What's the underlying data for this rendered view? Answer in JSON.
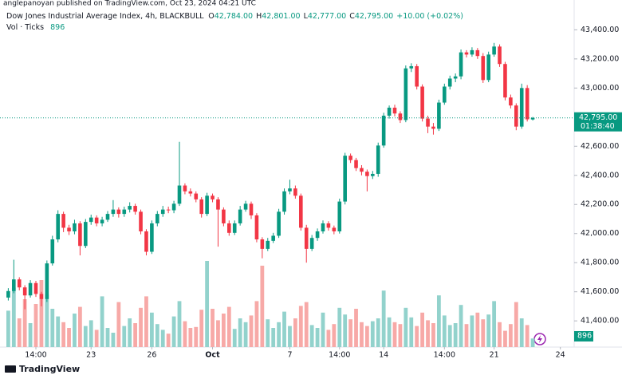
{
  "chart_data": {
    "type": "candlestick",
    "attribution": "anglepanoyan published on TradingView.com, Oct 23, 2024 04:21 UTC",
    "title": "Dow Jones Industrial Average Index, 4h, BLACKBULL",
    "ohlc_prefixes": [
      "O",
      "H",
      "L",
      "C"
    ],
    "last_labels": [
      "42,784.00",
      "42,801.00",
      "42,777.00",
      "42,795.00"
    ],
    "change_label": "+10.00 (+0.02%)",
    "volume_title": "Vol · Ticks",
    "countdown": "01:38:40",
    "brand": "TradingView",
    "up_color": "#089981",
    "down_color": "#f23645",
    "volume_up_color": "#92d2cc",
    "volume_down_color": "#f7a9a7",
    "ohlc": [
      [
        41560,
        41625,
        41540,
        41605
      ],
      [
        41605,
        41820,
        41590,
        41685
      ],
      [
        41685,
        41700,
        41610,
        41630
      ],
      [
        41630,
        41645,
        41480,
        41575
      ],
      [
        41575,
        41680,
        41560,
        41660
      ],
      [
        41660,
        41675,
        41565,
        41585
      ],
      [
        41585,
        41600,
        41500,
        41550
      ],
      [
        41550,
        41815,
        41530,
        41795
      ],
      [
        41795,
        41985,
        41780,
        41960
      ],
      [
        41960,
        42160,
        41940,
        42135
      ],
      [
        42135,
        42150,
        42010,
        42040
      ],
      [
        42040,
        42060,
        41990,
        42015
      ],
      [
        42015,
        42095,
        41995,
        42070
      ],
      [
        42070,
        42085,
        41850,
        41915
      ],
      [
        41915,
        42100,
        41900,
        42080
      ],
      [
        42080,
        42130,
        42060,
        42110
      ],
      [
        42110,
        42125,
        42050,
        42070
      ],
      [
        42070,
        42115,
        42050,
        42095
      ],
      [
        42095,
        42155,
        42080,
        42135
      ],
      [
        42135,
        42230,
        42115,
        42165
      ],
      [
        42165,
        42180,
        42110,
        42135
      ],
      [
        42135,
        42185,
        42115,
        42165
      ],
      [
        42165,
        42215,
        42145,
        42190
      ],
      [
        42190,
        42205,
        42130,
        42150
      ],
      [
        42150,
        42165,
        41995,
        42015
      ],
      [
        42015,
        42030,
        41850,
        41875
      ],
      [
        41875,
        42090,
        41860,
        42070
      ],
      [
        42070,
        42155,
        42050,
        42135
      ],
      [
        42135,
        42190,
        42115,
        42165
      ],
      [
        42165,
        42185,
        42140,
        42160
      ],
      [
        42160,
        42225,
        42140,
        42205
      ],
      [
        42205,
        42630,
        42190,
        42330
      ],
      [
        42330,
        42345,
        42270,
        42290
      ],
      [
        42290,
        42310,
        42255,
        42275
      ],
      [
        42275,
        42290,
        42215,
        42235
      ],
      [
        42235,
        42250,
        42110,
        42135
      ],
      [
        42135,
        42280,
        42120,
        42260
      ],
      [
        42260,
        42275,
        42215,
        42235
      ],
      [
        42235,
        42250,
        41910,
        42165
      ],
      [
        42165,
        42180,
        42050,
        42070
      ],
      [
        42070,
        42090,
        41985,
        42005
      ],
      [
        42005,
        42090,
        41990,
        42070
      ],
      [
        42070,
        42190,
        42055,
        42165
      ],
      [
        42165,
        42225,
        42150,
        42205
      ],
      [
        42205,
        42220,
        42100,
        42125
      ],
      [
        42125,
        42140,
        41940,
        41960
      ],
      [
        41960,
        41975,
        41830,
        41895
      ],
      [
        41895,
        41970,
        41880,
        41950
      ],
      [
        41950,
        42005,
        41935,
        41985
      ],
      [
        41985,
        42170,
        41970,
        42150
      ],
      [
        42150,
        42310,
        42130,
        42290
      ],
      [
        42290,
        42370,
        42270,
        42310
      ],
      [
        42310,
        42330,
        42240,
        42260
      ],
      [
        42260,
        42275,
        42020,
        42040
      ],
      [
        42040,
        42060,
        41800,
        41895
      ],
      [
        41895,
        41990,
        41880,
        41970
      ],
      [
        41970,
        42035,
        41950,
        42015
      ],
      [
        42015,
        42090,
        42000,
        42070
      ],
      [
        42070,
        42085,
        42020,
        42040
      ],
      [
        42040,
        42055,
        41995,
        42015
      ],
      [
        42015,
        42240,
        42000,
        42220
      ],
      [
        42220,
        42555,
        42200,
        42535
      ],
      [
        42535,
        42550,
        42485,
        42505
      ],
      [
        42505,
        42520,
        42430,
        42450
      ],
      [
        42450,
        42470,
        42400,
        42425
      ],
      [
        42425,
        42440,
        42290,
        42395
      ],
      [
        42395,
        42430,
        42375,
        42410
      ],
      [
        42410,
        42625,
        42390,
        42605
      ],
      [
        42605,
        42830,
        42590,
        42810
      ],
      [
        42810,
        42880,
        42790,
        42865
      ],
      [
        42865,
        42885,
        42805,
        42825
      ],
      [
        42825,
        42840,
        42760,
        42780
      ],
      [
        42780,
        43155,
        42765,
        43135
      ],
      [
        43135,
        43170,
        43110,
        43150
      ],
      [
        43150,
        43165,
        42990,
        43010
      ],
      [
        43010,
        43025,
        42770,
        42790
      ],
      [
        42790,
        42810,
        42690,
        42735
      ],
      [
        42735,
        42760,
        42680,
        42720
      ],
      [
        42720,
        42920,
        42705,
        42900
      ],
      [
        42900,
        43030,
        42885,
        43010
      ],
      [
        43010,
        43085,
        42990,
        43065
      ],
      [
        43065,
        43100,
        43040,
        43080
      ],
      [
        43080,
        43265,
        43060,
        43245
      ],
      [
        43245,
        43260,
        43210,
        43230
      ],
      [
        43230,
        43280,
        43215,
        43260
      ],
      [
        43260,
        43275,
        43200,
        43220
      ],
      [
        43220,
        43240,
        43035,
        43055
      ],
      [
        43055,
        43250,
        43040,
        43230
      ],
      [
        43230,
        43310,
        43215,
        43285
      ],
      [
        43285,
        43300,
        43145,
        43165
      ],
      [
        43165,
        43180,
        42915,
        42935
      ],
      [
        42935,
        42955,
        42860,
        42880
      ],
      [
        42880,
        42895,
        42710,
        42735
      ],
      [
        42735,
        43030,
        42720,
        43000
      ],
      [
        43000,
        43020,
        42770,
        42785
      ],
      [
        42784,
        42801,
        42777,
        42795
      ]
    ],
    "volume": [
      3800,
      6200,
      3000,
      5000,
      2500,
      4500,
      7000,
      5500,
      4000,
      3200,
      2600,
      2000,
      3500,
      4200,
      2200,
      2800,
      1800,
      5300,
      2000,
      1500,
      4700,
      2200,
      3000,
      2500,
      4100,
      5300,
      3600,
      2400,
      1800,
      1400,
      3200,
      4800,
      2700,
      2000,
      2100,
      3900,
      9000,
      4000,
      2800,
      3500,
      4200,
      1900,
      3000,
      2600,
      3300,
      4800,
      8500,
      2900,
      2000,
      2600,
      3700,
      2200,
      3000,
      4300,
      4700,
      2300,
      2000,
      3600,
      1800,
      2400,
      4100,
      3400,
      2900,
      4000,
      2600,
      2200,
      2700,
      3000,
      5900,
      3100,
      2600,
      2400,
      4100,
      3100,
      2200,
      3600,
      2800,
      2500,
      5400,
      3300,
      2300,
      2500,
      4400,
      2400,
      3300,
      3600,
      2900,
      3400,
      4800,
      2600,
      1700,
      2400,
      4700,
      3000,
      2300,
      896
    ],
    "xlim": [
      -1.5,
      102.5
    ],
    "xticks": [
      {
        "value": 5,
        "label": "14:00"
      },
      {
        "value": 15,
        "label": "23"
      },
      {
        "value": 26,
        "label": "26"
      },
      {
        "value": 37,
        "label": "Oct"
      },
      {
        "value": 51,
        "label": "7"
      },
      {
        "value": 60,
        "label": "14:00"
      },
      {
        "value": 68,
        "label": "14"
      },
      {
        "value": 79,
        "label": "14:00"
      },
      {
        "value": 88,
        "label": "21"
      },
      {
        "value": 100,
        "label": "24"
      }
    ],
    "ylim": [
      41220,
      43550
    ],
    "yticks": [
      {
        "value": 41400,
        "label": "41,400.00"
      },
      {
        "value": 41600,
        "label": "41,600.00"
      },
      {
        "value": 41800,
        "label": "41,800.00"
      },
      {
        "value": 42000,
        "label": "42,000.00"
      },
      {
        "value": 42200,
        "label": "42,200.00"
      },
      {
        "value": 42400,
        "label": "42,400.00"
      },
      {
        "value": 42600,
        "label": "42,600.00"
      },
      {
        "value": 42800,
        "label": "42,800.00"
      },
      {
        "value": 43000,
        "label": "43,000.00"
      },
      {
        "value": 43200,
        "label": "43,200.00"
      },
      {
        "value": 43400,
        "label": "43,400.00"
      }
    ]
  }
}
